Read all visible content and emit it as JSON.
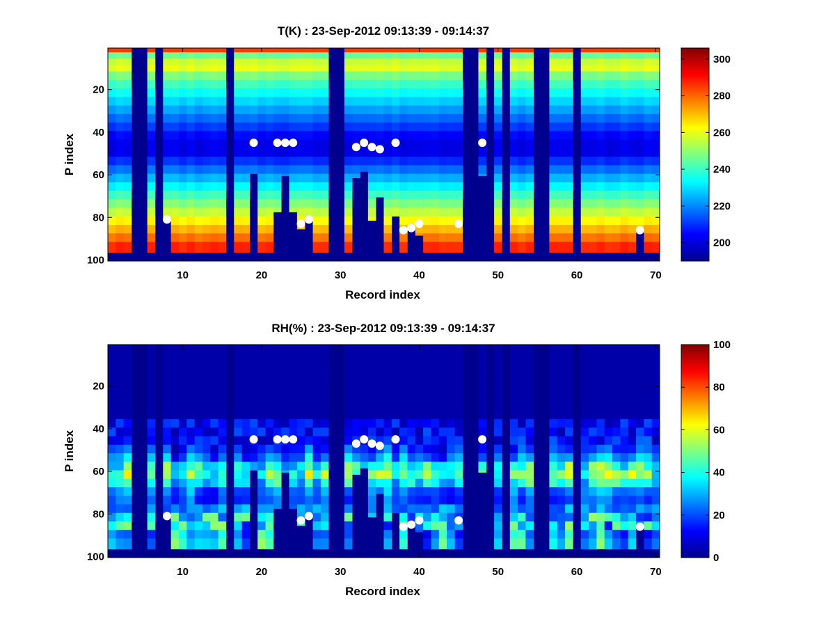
{
  "chart_data": [
    {
      "type": "heatmap",
      "variable": "temperature",
      "title": "T(K) : 23-Sep-2012 09:13:39 - 09:14:37",
      "xlabel": "Record index",
      "ylabel": "P index",
      "xlim": [
        0.5,
        70.5
      ],
      "ylim": [
        0.5,
        100.5
      ],
      "y_reversed": true,
      "xticks": [
        10,
        20,
        30,
        40,
        50,
        60,
        70
      ],
      "yticks": [
        20,
        40,
        60,
        80,
        100
      ],
      "colorbar": {
        "range": [
          190,
          306
        ],
        "ticks": [
          200,
          220,
          240,
          260,
          280,
          300
        ]
      },
      "colormap": "jet",
      "missing_records": [
        4,
        5,
        7,
        16,
        29,
        30,
        46,
        47,
        49,
        51,
        55,
        56,
        60
      ],
      "invalid_profiles": [
        {
          "record": 8,
          "from_p": 81
        },
        {
          "record": 19,
          "from_p": 60
        },
        {
          "record": 22,
          "from_p": 78
        },
        {
          "record": 23,
          "from_p": 61
        },
        {
          "record": 24,
          "from_p": 78
        },
        {
          "record": 25,
          "from_p": 86
        },
        {
          "record": 26,
          "from_p": 81
        },
        {
          "record": 32,
          "from_p": 62
        },
        {
          "record": 33,
          "from_p": 59
        },
        {
          "record": 34,
          "from_p": 82
        },
        {
          "record": 35,
          "from_p": 71
        },
        {
          "record": 37,
          "from_p": 80
        },
        {
          "record": 39,
          "from_p": 86
        },
        {
          "record": 40,
          "from_p": 89
        },
        {
          "record": 48,
          "from_p": 61
        },
        {
          "record": 68,
          "from_p": 86
        }
      ],
      "markers": [
        {
          "record": 8,
          "p": 81
        },
        {
          "record": 19,
          "p": 45
        },
        {
          "record": 22,
          "p": 45
        },
        {
          "record": 23,
          "p": 45
        },
        {
          "record": 24,
          "p": 45
        },
        {
          "record": 25,
          "p": 83
        },
        {
          "record": 26,
          "p": 81
        },
        {
          "record": 32,
          "p": 47
        },
        {
          "record": 33,
          "p": 45
        },
        {
          "record": 34,
          "p": 47
        },
        {
          "record": 35,
          "p": 48
        },
        {
          "record": 37,
          "p": 45
        },
        {
          "record": 38,
          "p": 86
        },
        {
          "record": 39,
          "p": 85
        },
        {
          "record": 40,
          "p": 83
        },
        {
          "record": 45,
          "p": 83
        },
        {
          "record": 48,
          "p": 45
        },
        {
          "record": 68,
          "p": 86
        }
      ]
    },
    {
      "type": "heatmap",
      "variable": "relative_humidity",
      "title": "RH(%) : 23-Sep-2012 09:13:39 - 09:14:37",
      "xlabel": "Record index",
      "ylabel": "P index",
      "xlim": [
        0.5,
        70.5
      ],
      "ylim": [
        0.5,
        100.5
      ],
      "y_reversed": true,
      "xticks": [
        10,
        20,
        30,
        40,
        50,
        60,
        70
      ],
      "yticks": [
        20,
        40,
        60,
        80,
        100
      ],
      "colorbar": {
        "range": [
          0,
          100
        ],
        "ticks": [
          0,
          20,
          40,
          60,
          80,
          100
        ]
      },
      "colormap": "jet",
      "missing_records": [
        4,
        5,
        7,
        16,
        29,
        30,
        46,
        47,
        49,
        51,
        55,
        56,
        60
      ],
      "invalid_profiles": [
        {
          "record": 8,
          "from_p": 81
        },
        {
          "record": 19,
          "from_p": 60
        },
        {
          "record": 22,
          "from_p": 78
        },
        {
          "record": 23,
          "from_p": 61
        },
        {
          "record": 24,
          "from_p": 78
        },
        {
          "record": 25,
          "from_p": 86
        },
        {
          "record": 26,
          "from_p": 81
        },
        {
          "record": 32,
          "from_p": 62
        },
        {
          "record": 33,
          "from_p": 59
        },
        {
          "record": 34,
          "from_p": 82
        },
        {
          "record": 35,
          "from_p": 71
        },
        {
          "record": 37,
          "from_p": 80
        },
        {
          "record": 39,
          "from_p": 86
        },
        {
          "record": 40,
          "from_p": 89
        },
        {
          "record": 48,
          "from_p": 61
        },
        {
          "record": 68,
          "from_p": 86
        }
      ],
      "markers": [
        {
          "record": 8,
          "p": 81
        },
        {
          "record": 19,
          "p": 45
        },
        {
          "record": 22,
          "p": 45
        },
        {
          "record": 23,
          "p": 45
        },
        {
          "record": 24,
          "p": 45
        },
        {
          "record": 25,
          "p": 83
        },
        {
          "record": 26,
          "p": 81
        },
        {
          "record": 32,
          "p": 47
        },
        {
          "record": 33,
          "p": 45
        },
        {
          "record": 34,
          "p": 47
        },
        {
          "record": 35,
          "p": 48
        },
        {
          "record": 37,
          "p": 45
        },
        {
          "record": 38,
          "p": 86
        },
        {
          "record": 39,
          "p": 85
        },
        {
          "record": 40,
          "p": 83
        },
        {
          "record": 45,
          "p": 83
        },
        {
          "record": 48,
          "p": 45
        },
        {
          "record": 68,
          "p": 86
        }
      ]
    }
  ]
}
